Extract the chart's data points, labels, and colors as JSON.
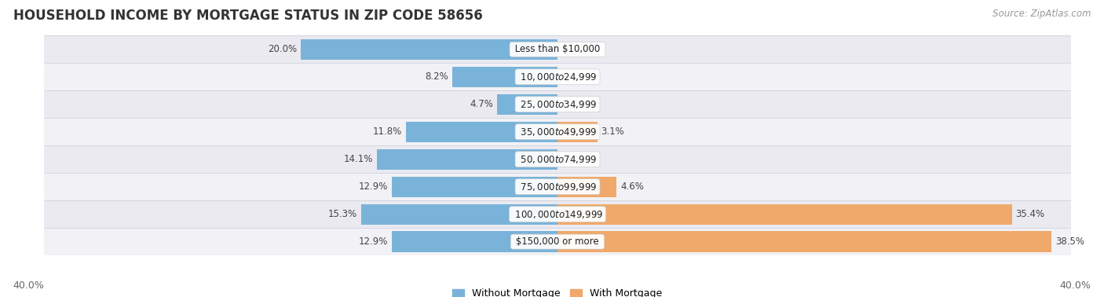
{
  "title": "HOUSEHOLD INCOME BY MORTGAGE STATUS IN ZIP CODE 58656",
  "source": "Source: ZipAtlas.com",
  "categories": [
    "Less than $10,000",
    "$10,000 to $24,999",
    "$25,000 to $34,999",
    "$35,000 to $49,999",
    "$50,000 to $74,999",
    "$75,000 to $99,999",
    "$100,000 to $149,999",
    "$150,000 or more"
  ],
  "without_mortgage": [
    20.0,
    8.2,
    4.7,
    11.8,
    14.1,
    12.9,
    15.3,
    12.9
  ],
  "with_mortgage": [
    0.0,
    0.0,
    0.0,
    3.1,
    0.0,
    4.6,
    35.4,
    38.5
  ],
  "max_val": 40.0,
  "color_without": "#7ab3d9",
  "color_with": "#f0a96a",
  "row_colors": [
    "#eaeaf0",
    "#f2f2f6"
  ],
  "title_fontsize": 12,
  "source_fontsize": 8.5,
  "label_fontsize": 8.5,
  "value_fontsize": 8.5,
  "tick_fontsize": 9,
  "legend_fontsize": 9,
  "axis_label_left": "40.0%",
  "axis_label_right": "40.0%"
}
